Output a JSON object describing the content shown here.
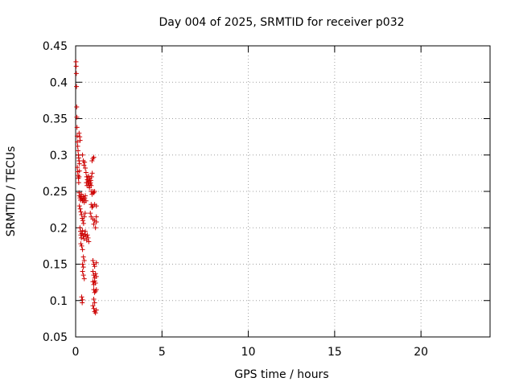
{
  "chart_data": {
    "type": "scatter",
    "title": "Day 004 of 2025, SRMTID for receiver p032",
    "xlabel": "GPS time / hours",
    "ylabel": "SRMTID / TECUs",
    "xlim": [
      0,
      24
    ],
    "ylim": [
      0.05,
      0.45
    ],
    "xticks": [
      0,
      5,
      10,
      15,
      20
    ],
    "xtick_labels": [
      "0",
      "5",
      "10",
      "15",
      "20"
    ],
    "yticks": [
      0.05,
      0.1,
      0.15,
      0.2,
      0.25,
      0.3,
      0.35,
      0.4,
      0.45
    ],
    "ytick_labels": [
      "0.05",
      "0.1",
      "0.15",
      "0.2",
      "0.25",
      "0.3",
      "0.35",
      "0.4",
      "0.45"
    ],
    "grid": true,
    "marker": "+",
    "color": "#cc0000",
    "points": [
      [
        0.02,
        0.428
      ],
      [
        0.03,
        0.422
      ],
      [
        0.04,
        0.412
      ],
      [
        0.05,
        0.394
      ],
      [
        0.06,
        0.366
      ],
      [
        0.07,
        0.352
      ],
      [
        0.08,
        0.338
      ],
      [
        0.09,
        0.326
      ],
      [
        0.1,
        0.318
      ],
      [
        0.12,
        0.312
      ],
      [
        0.14,
        0.306
      ],
      [
        0.16,
        0.3
      ],
      [
        0.18,
        0.296
      ],
      [
        0.2,
        0.292
      ],
      [
        0.22,
        0.288
      ],
      [
        0.1,
        0.283
      ],
      [
        0.12,
        0.277
      ],
      [
        0.14,
        0.272
      ],
      [
        0.16,
        0.268
      ],
      [
        0.18,
        0.262
      ],
      [
        0.2,
        0.33
      ],
      [
        0.24,
        0.325
      ],
      [
        0.26,
        0.32
      ],
      [
        0.2,
        0.27
      ],
      [
        0.22,
        0.278
      ],
      [
        0.2,
        0.248
      ],
      [
        0.22,
        0.244
      ],
      [
        0.25,
        0.241
      ],
      [
        0.28,
        0.238
      ],
      [
        0.3,
        0.243
      ],
      [
        0.33,
        0.246
      ],
      [
        0.36,
        0.24
      ],
      [
        0.4,
        0.237
      ],
      [
        0.43,
        0.243
      ],
      [
        0.46,
        0.239
      ],
      [
        0.5,
        0.235
      ],
      [
        0.53,
        0.241
      ],
      [
        0.56,
        0.244
      ],
      [
        0.6,
        0.237
      ],
      [
        0.22,
        0.23
      ],
      [
        0.26,
        0.226
      ],
      [
        0.3,
        0.222
      ],
      [
        0.34,
        0.218
      ],
      [
        0.38,
        0.213
      ],
      [
        0.42,
        0.21
      ],
      [
        0.46,
        0.206
      ],
      [
        0.5,
        0.215
      ],
      [
        0.55,
        0.22
      ],
      [
        0.25,
        0.2
      ],
      [
        0.28,
        0.195
      ],
      [
        0.3,
        0.19
      ],
      [
        0.33,
        0.186
      ],
      [
        0.36,
        0.192
      ],
      [
        0.4,
        0.196
      ],
      [
        0.44,
        0.189
      ],
      [
        0.48,
        0.185
      ],
      [
        0.52,
        0.191
      ],
      [
        0.56,
        0.195
      ],
      [
        0.6,
        0.188
      ],
      [
        0.64,
        0.183
      ],
      [
        0.68,
        0.19
      ],
      [
        0.72,
        0.186
      ],
      [
        0.76,
        0.181
      ],
      [
        0.3,
        0.178
      ],
      [
        0.35,
        0.175
      ],
      [
        0.4,
        0.17
      ],
      [
        0.4,
        0.3
      ],
      [
        0.44,
        0.292
      ],
      [
        0.48,
        0.286
      ],
      [
        0.52,
        0.29
      ],
      [
        0.56,
        0.282
      ],
      [
        0.6,
        0.276
      ],
      [
        0.64,
        0.27
      ],
      [
        0.68,
        0.266
      ],
      [
        0.72,
        0.262
      ],
      [
        0.76,
        0.258
      ],
      [
        0.8,
        0.255
      ],
      [
        0.84,
        0.26
      ],
      [
        0.88,
        0.265
      ],
      [
        0.92,
        0.27
      ],
      [
        0.96,
        0.275
      ],
      [
        0.62,
        0.262
      ],
      [
        0.66,
        0.258
      ],
      [
        0.7,
        0.266
      ],
      [
        0.74,
        0.271
      ],
      [
        0.78,
        0.264
      ],
      [
        0.82,
        0.268
      ],
      [
        0.86,
        0.262
      ],
      [
        0.9,
        0.258
      ],
      [
        0.95,
        0.292
      ],
      [
        1.0,
        0.295
      ],
      [
        1.05,
        0.297
      ],
      [
        0.9,
        0.25
      ],
      [
        0.95,
        0.246
      ],
      [
        1.0,
        0.25
      ],
      [
        1.05,
        0.248
      ],
      [
        1.1,
        0.25
      ],
      [
        0.9,
        0.232
      ],
      [
        0.95,
        0.228
      ],
      [
        1.0,
        0.23
      ],
      [
        1.1,
        0.232
      ],
      [
        1.2,
        0.23
      ],
      [
        0.85,
        0.22
      ],
      [
        0.9,
        0.215
      ],
      [
        1.0,
        0.212
      ],
      [
        1.1,
        0.21
      ],
      [
        1.2,
        0.215
      ],
      [
        1.05,
        0.205
      ],
      [
        1.15,
        0.2
      ],
      [
        1.2,
        0.208
      ],
      [
        0.45,
        0.16
      ],
      [
        0.5,
        0.155
      ],
      [
        0.4,
        0.15
      ],
      [
        0.45,
        0.146
      ],
      [
        0.4,
        0.14
      ],
      [
        0.45,
        0.135
      ],
      [
        0.5,
        0.13
      ],
      [
        0.35,
        0.105
      ],
      [
        0.4,
        0.101
      ],
      [
        0.38,
        0.097
      ],
      [
        1.0,
        0.155
      ],
      [
        1.05,
        0.15
      ],
      [
        1.1,
        0.147
      ],
      [
        1.2,
        0.152
      ],
      [
        1.0,
        0.14
      ],
      [
        1.05,
        0.135
      ],
      [
        1.1,
        0.131
      ],
      [
        1.15,
        0.137
      ],
      [
        1.2,
        0.133
      ],
      [
        1.0,
        0.126
      ],
      [
        1.05,
        0.122
      ],
      [
        1.1,
        0.127
      ],
      [
        1.15,
        0.124
      ],
      [
        1.05,
        0.115
      ],
      [
        1.1,
        0.111
      ],
      [
        1.15,
        0.113
      ],
      [
        1.2,
        0.115
      ],
      [
        1.05,
        0.102
      ],
      [
        1.1,
        0.097
      ],
      [
        1.0,
        0.093
      ],
      [
        1.05,
        0.089
      ],
      [
        1.1,
        0.085
      ],
      [
        1.15,
        0.083
      ],
      [
        1.2,
        0.087
      ]
    ]
  }
}
